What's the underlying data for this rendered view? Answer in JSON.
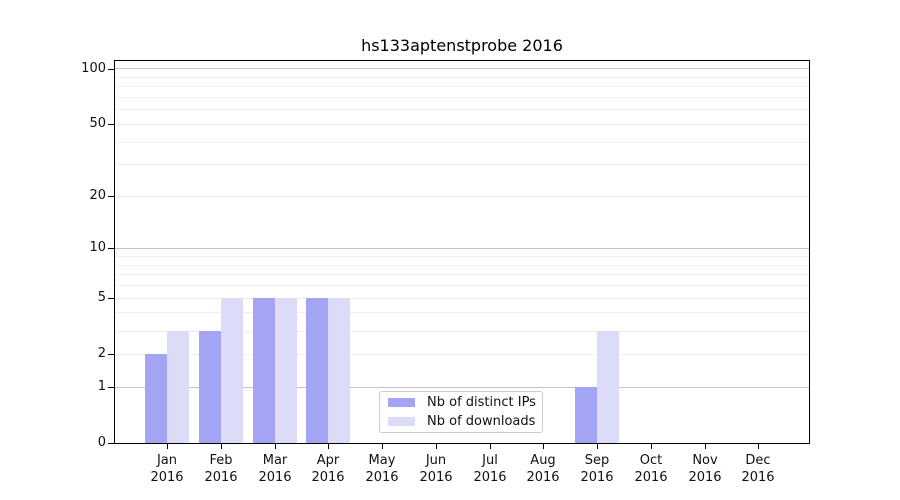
{
  "figure": {
    "title": "hs133aptenstprobe 2016"
  },
  "chart_data": {
    "type": "bar",
    "title": "hs133aptenstprobe 2016",
    "categories": [
      "Jan",
      "Feb",
      "Mar",
      "Apr",
      "May",
      "Jun",
      "Jul",
      "Aug",
      "Sep",
      "Oct",
      "Nov",
      "Dec"
    ],
    "x_year": "2016",
    "series": [
      {
        "name": "Nb of distinct IPs",
        "color": "#a4a4f4",
        "values": [
          2,
          3,
          5,
          5,
          0,
          0,
          0,
          0,
          1,
          0,
          0,
          0
        ]
      },
      {
        "name": "Nb of downloads",
        "color": "#dcdcf8",
        "values": [
          3,
          5,
          5,
          5,
          0,
          0,
          0,
          0,
          3,
          0,
          0,
          0
        ]
      }
    ],
    "yscale": "log1p",
    "ylim": [
      0,
      113
    ],
    "ytick_labels": [
      0,
      1,
      2,
      5,
      10,
      20,
      50,
      100
    ],
    "major_gridlines": [
      1,
      10,
      100
    ],
    "minor_gridlines": [
      2,
      3,
      4,
      5,
      6,
      7,
      8,
      9,
      20,
      30,
      40,
      50,
      60,
      70,
      80,
      90
    ],
    "grid": true,
    "legend_position": "lower center",
    "colors": {
      "grid_major": "#c3c3c3",
      "grid_minor": "#eeeeee",
      "axis": "#000000",
      "text": "#111111"
    }
  }
}
